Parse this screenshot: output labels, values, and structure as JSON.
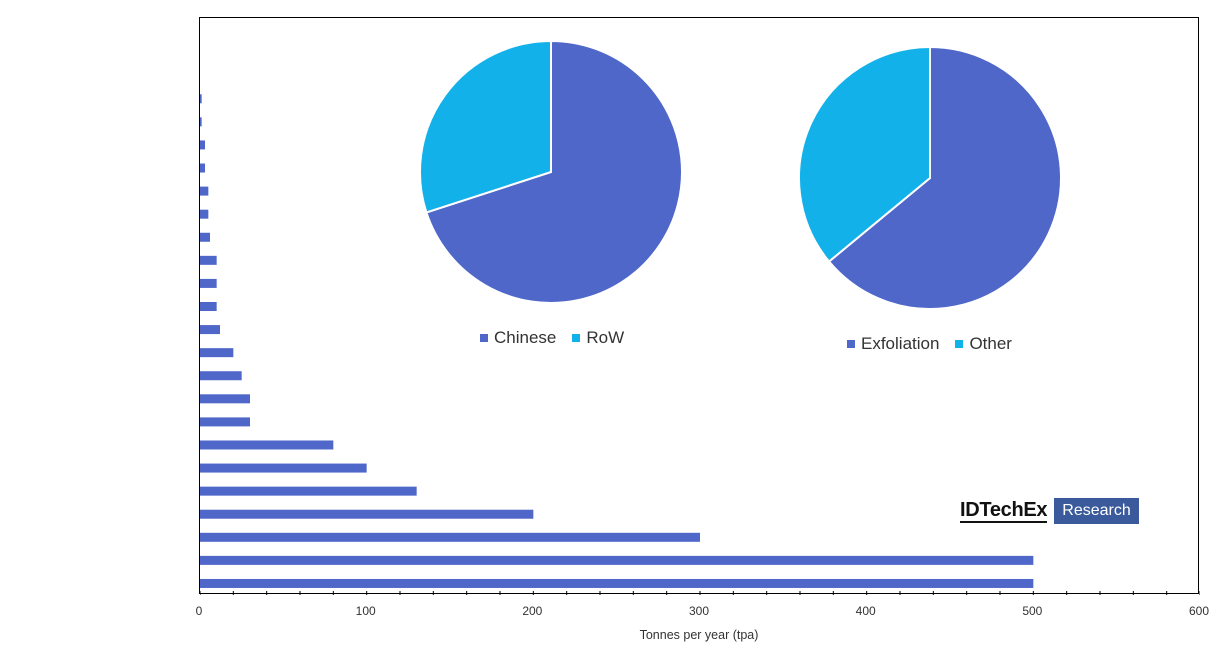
{
  "chart_data": [
    {
      "type": "bar",
      "orientation": "horizontal",
      "categories": [
        "",
        "",
        "",
        "",
        "",
        "",
        "",
        "",
        "",
        "",
        "",
        "",
        "",
        "",
        "",
        "",
        "",
        "",
        "",
        "",
        "",
        "",
        "",
        "",
        ""
      ],
      "values": [
        0,
        0,
        0,
        1,
        1,
        3,
        3,
        5,
        5,
        6,
        10,
        10,
        10,
        12,
        20,
        25,
        30,
        30,
        80,
        100,
        130,
        200,
        300,
        500,
        500
      ],
      "xlabel": "Tonnes per year (tpa)",
      "ylabel": "",
      "xlim": [
        0,
        600
      ],
      "xticks": [
        "0",
        "100",
        "200",
        "300",
        "400",
        "500",
        "600"
      ],
      "color": "#4f67c9",
      "grid": false
    },
    {
      "type": "pie",
      "labels": [
        "Chinese",
        "RoW"
      ],
      "values": [
        70,
        30
      ],
      "colors": [
        "#4f67c9",
        "#13b1ea"
      ],
      "legend": "bottom"
    },
    {
      "type": "pie",
      "labels": [
        "Exfoliation",
        "Other"
      ],
      "values": [
        64,
        36
      ],
      "colors": [
        "#4f67c9",
        "#13b1ea"
      ],
      "legend": "bottom"
    }
  ],
  "logo": {
    "brand": "IDTechEx",
    "tagline": "Research"
  }
}
